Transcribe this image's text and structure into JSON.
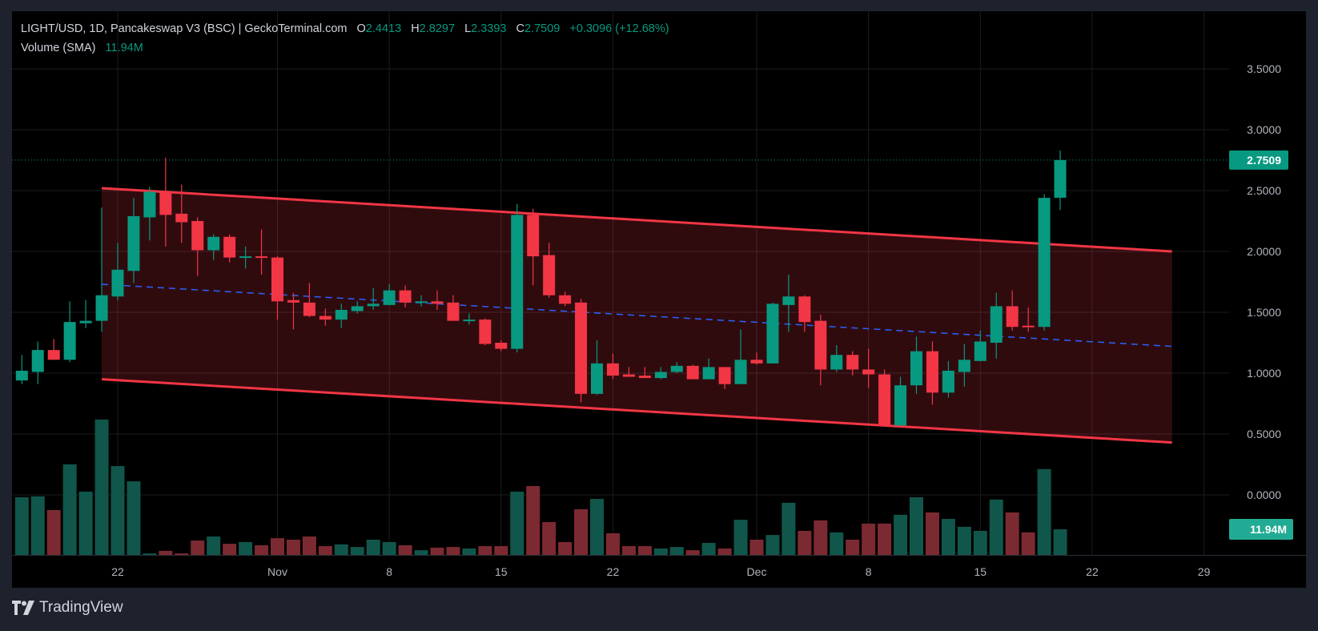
{
  "legend": {
    "symbol_line": "LIGHT/USD, 1D, Pancakeswap V3 (BSC) | GeckoTerminal.com",
    "o_label": "O",
    "o": "2.4413",
    "h_label": "H",
    "h": "2.8297",
    "l_label": "L",
    "l": "2.3393",
    "c_label": "C",
    "c": "2.7509",
    "change": "+0.3096 (+12.68%)",
    "volume_label": "Volume (SMA)",
    "volume_value": "11.94M"
  },
  "branding": {
    "name": "TradingView"
  },
  "colors": {
    "up": "#089981",
    "down": "#f23645",
    "volume_up": "#11564b",
    "volume_down": "#7c2a31",
    "channel": "#f23645",
    "midline": "#2962ff",
    "background": "#000000"
  },
  "chart_data": {
    "type": "candlestick",
    "title": "LIGHT/USD, 1D, Pancakeswap V3 (BSC) | GeckoTerminal.com",
    "y_ticks": [
      "3.5000",
      "3.0000",
      "2.5000",
      "2.0000",
      "1.5000",
      "1.0000",
      "0.5000",
      "0.0000"
    ],
    "ylim": [
      0,
      3.5
    ],
    "grid": true,
    "last_price": "2.7509",
    "last_volume": "11.94M",
    "x_ticks": [
      {
        "label": "22",
        "date": "Oct 22"
      },
      {
        "label": "Nov",
        "date": "Nov 1"
      },
      {
        "label": "8",
        "date": "Nov 8"
      },
      {
        "label": "15",
        "date": "Nov 15"
      },
      {
        "label": "22",
        "date": "Nov 22"
      },
      {
        "label": "Dec",
        "date": "Dec 1"
      },
      {
        "label": "8",
        "date": "Dec 8"
      },
      {
        "label": "15",
        "date": "Dec 15"
      },
      {
        "label": "22",
        "date": "Dec 22"
      },
      {
        "label": "29",
        "date": "Dec 29"
      }
    ],
    "channel": {
      "upper": [
        [
          "Oct 21",
          2.52
        ],
        [
          "Dec 27",
          2.0
        ]
      ],
      "middle": [
        [
          "Oct 21",
          1.73
        ],
        [
          "Dec 27",
          1.22
        ]
      ],
      "lower": [
        [
          "Oct 21",
          0.95
        ],
        [
          "Dec 27",
          0.43
        ]
      ]
    },
    "candle_fields": [
      "date",
      "open",
      "high",
      "low",
      "close",
      "volume_M"
    ],
    "candles": [
      [
        "Oct 16",
        0.94,
        1.15,
        0.91,
        1.02,
        26.9
      ],
      [
        "Oct 17",
        1.01,
        1.26,
        0.91,
        1.19,
        27.3
      ],
      [
        "Oct 18",
        1.19,
        1.28,
        1.11,
        1.11,
        20.9
      ],
      [
        "Oct 19",
        1.11,
        1.59,
        1.09,
        1.42,
        42.2
      ],
      [
        "Oct 20",
        1.41,
        1.6,
        1.37,
        1.43,
        29.5
      ],
      [
        "Oct 21",
        1.43,
        2.36,
        1.34,
        1.64,
        63.1
      ],
      [
        "Oct 22",
        1.63,
        2.07,
        1.6,
        1.85,
        41.4
      ],
      [
        "Oct 23",
        1.84,
        2.44,
        1.74,
        2.29,
        34.3
      ],
      [
        "Oct 24",
        2.28,
        2.53,
        2.09,
        2.49,
        0.7
      ],
      [
        "Oct 25",
        2.49,
        2.77,
        2.04,
        2.3,
        1.9
      ],
      [
        "Oct 26",
        2.31,
        2.55,
        2.07,
        2.24,
        0.7
      ],
      [
        "Oct 27",
        2.25,
        2.28,
        1.8,
        2.01,
        6.7
      ],
      [
        "Oct 28",
        2.01,
        2.14,
        1.93,
        2.12,
        8.6
      ],
      [
        "Oct 29",
        2.12,
        2.14,
        1.91,
        1.95,
        5.2
      ],
      [
        "Oct 30",
        1.95,
        2.04,
        1.86,
        1.96,
        6.0
      ],
      [
        "Oct 31",
        1.96,
        2.18,
        1.81,
        1.95,
        4.5
      ],
      [
        "Nov 1",
        1.95,
        1.96,
        1.44,
        1.59,
        7.8
      ],
      [
        "Nov 2",
        1.6,
        1.66,
        1.36,
        1.58,
        7.1
      ],
      [
        "Nov 3",
        1.58,
        1.74,
        1.46,
        1.47,
        8.6
      ],
      [
        "Nov 4",
        1.47,
        1.53,
        1.39,
        1.44,
        4.1
      ],
      [
        "Nov 5",
        1.44,
        1.57,
        1.37,
        1.52,
        4.9
      ],
      [
        "Nov 6",
        1.51,
        1.59,
        1.49,
        1.55,
        3.7
      ],
      [
        "Nov 7",
        1.55,
        1.7,
        1.52,
        1.57,
        7.1
      ],
      [
        "Nov 8",
        1.56,
        1.73,
        1.56,
        1.68,
        6.0
      ],
      [
        "Nov 9",
        1.68,
        1.72,
        1.54,
        1.58,
        4.5
      ],
      [
        "Nov 10",
        1.58,
        1.64,
        1.55,
        1.59,
        2.2
      ],
      [
        "Nov 11",
        1.59,
        1.68,
        1.52,
        1.57,
        3.4
      ],
      [
        "Nov 12",
        1.58,
        1.64,
        1.43,
        1.43,
        3.7
      ],
      [
        "Nov 13",
        1.43,
        1.49,
        1.4,
        1.44,
        3.0
      ],
      [
        "Nov 14",
        1.44,
        1.45,
        1.23,
        1.24,
        4.1
      ],
      [
        "Nov 15",
        1.25,
        1.27,
        1.18,
        1.2,
        4.1
      ],
      [
        "Nov 16",
        1.2,
        2.39,
        1.17,
        2.3,
        29.5
      ],
      [
        "Nov 17",
        2.3,
        2.35,
        1.72,
        1.96,
        32.1
      ],
      [
        "Nov 18",
        1.97,
        2.07,
        1.62,
        1.64,
        15.3
      ],
      [
        "Nov 19",
        1.64,
        1.67,
        1.55,
        1.57,
        6.0
      ],
      [
        "Nov 20",
        1.58,
        1.61,
        0.76,
        0.83,
        21.3
      ],
      [
        "Nov 21",
        0.83,
        1.27,
        0.82,
        1.08,
        26.1
      ],
      [
        "Nov 22",
        1.08,
        1.16,
        0.95,
        0.98,
        10.1
      ],
      [
        "Nov 23",
        0.99,
        1.05,
        0.97,
        0.97,
        4.1
      ],
      [
        "Nov 24",
        0.98,
        1.05,
        0.96,
        0.96,
        4.1
      ],
      [
        "Nov 25",
        0.96,
        1.05,
        0.95,
        1.01,
        3.0
      ],
      [
        "Nov 26",
        1.01,
        1.09,
        1.0,
        1.06,
        3.7
      ],
      [
        "Nov 27",
        1.06,
        1.07,
        0.95,
        0.95,
        2.2
      ],
      [
        "Nov 28",
        0.95,
        1.12,
        0.95,
        1.05,
        5.6
      ],
      [
        "Nov 29",
        1.05,
        1.05,
        0.87,
        0.91,
        3.0
      ],
      [
        "Nov 30",
        0.91,
        1.36,
        0.91,
        1.11,
        16.4
      ],
      [
        "Dec 1",
        1.11,
        1.17,
        1.07,
        1.08,
        7.1
      ],
      [
        "Dec 2",
        1.08,
        1.58,
        1.08,
        1.57,
        9.3
      ],
      [
        "Dec 3",
        1.56,
        1.81,
        1.34,
        1.63,
        24.3
      ],
      [
        "Dec 4",
        1.63,
        1.64,
        1.34,
        1.42,
        11.2
      ],
      [
        "Dec 5",
        1.43,
        1.48,
        0.9,
        1.03,
        16.1
      ],
      [
        "Dec 6",
        1.03,
        1.23,
        1.01,
        1.15,
        10.5
      ],
      [
        "Dec 7",
        1.15,
        1.18,
        0.98,
        1.03,
        7.1
      ],
      [
        "Dec 8",
        1.03,
        1.2,
        0.88,
        0.99,
        14.6
      ],
      [
        "Dec 9",
        0.99,
        1.03,
        0.57,
        0.57,
        14.6
      ],
      [
        "Dec 10",
        0.57,
        0.97,
        0.57,
        0.9,
        18.7
      ],
      [
        "Dec 11",
        0.9,
        1.3,
        0.83,
        1.18,
        26.9
      ],
      [
        "Dec 12",
        1.18,
        1.26,
        0.74,
        0.84,
        19.8
      ],
      [
        "Dec 13",
        0.84,
        1.1,
        0.8,
        1.02,
        16.8
      ],
      [
        "Dec 14",
        1.01,
        1.24,
        0.89,
        1.11,
        13.1
      ],
      [
        "Dec 15",
        1.1,
        1.35,
        1.1,
        1.26,
        11.2
      ],
      [
        "Dec 16",
        1.25,
        1.66,
        1.12,
        1.55,
        25.8
      ],
      [
        "Dec 17",
        1.55,
        1.68,
        1.35,
        1.38,
        19.8
      ],
      [
        "Dec 18",
        1.39,
        1.54,
        1.34,
        1.38,
        10.5
      ],
      [
        "Dec 19",
        1.38,
        2.47,
        1.35,
        2.44,
        40.0
      ],
      [
        "Dec 20",
        2.4413,
        2.8297,
        2.3393,
        2.7509,
        11.94
      ]
    ]
  }
}
